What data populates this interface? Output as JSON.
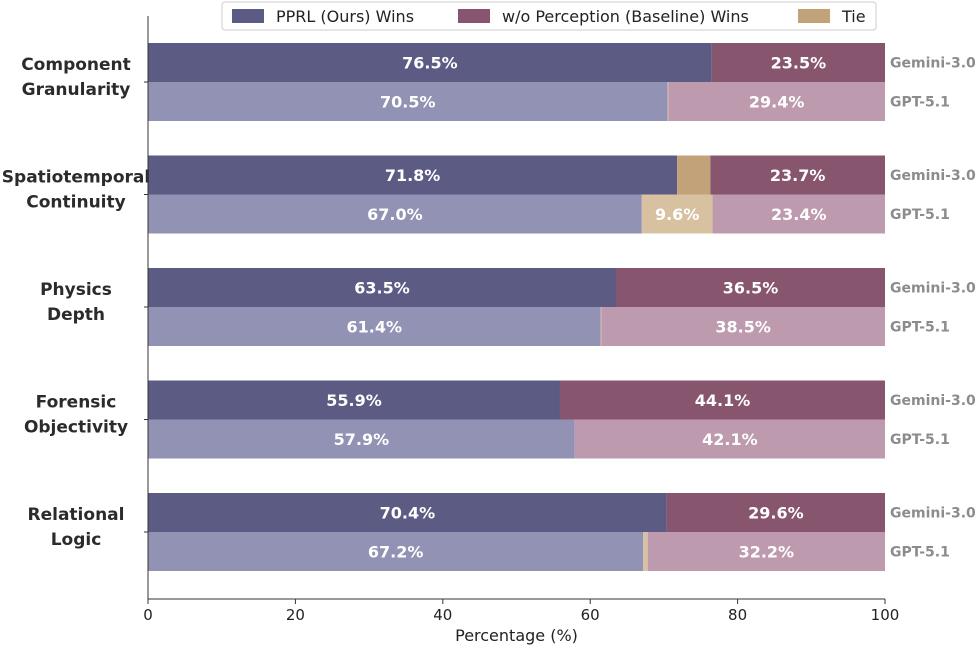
{
  "chart_data": {
    "type": "bar",
    "orientation": "horizontal",
    "stacked": true,
    "xlabel": "Percentage (%)",
    "xlim": [
      0,
      100
    ],
    "xticks": [
      0,
      20,
      40,
      60,
      80,
      100
    ],
    "legend": {
      "placement": "top",
      "entries": [
        "PPRL (Ours) Wins",
        "w/o Perception (Baseline) Wins",
        "Tie"
      ]
    },
    "models": [
      "Gemini-3.0",
      "GPT-5.1"
    ],
    "categories": [
      {
        "label_lines": [
          "Component",
          "Granularity"
        ],
        "rows": [
          {
            "model": "Gemini-3.0",
            "ours": 76.5,
            "tie": 0.0,
            "baseline": 23.5,
            "ours_label": "76.5%",
            "tie_label": "",
            "baseline_label": "23.5%"
          },
          {
            "model": "GPT-5.1",
            "ours": 70.5,
            "tie": 0.1,
            "baseline": 29.4,
            "ours_label": "70.5%",
            "tie_label": "",
            "baseline_label": "29.4%"
          }
        ]
      },
      {
        "label_lines": [
          "Spatiotemporal",
          "Continuity"
        ],
        "rows": [
          {
            "model": "Gemini-3.0",
            "ours": 71.8,
            "tie": 4.5,
            "baseline": 23.7,
            "ours_label": "71.8%",
            "tie_label": "",
            "baseline_label": "23.7%"
          },
          {
            "model": "GPT-5.1",
            "ours": 67.0,
            "tie": 9.6,
            "baseline": 23.4,
            "ours_label": "67.0%",
            "tie_label": "9.6%",
            "baseline_label": "23.4%"
          }
        ]
      },
      {
        "label_lines": [
          "Physics",
          "Depth"
        ],
        "rows": [
          {
            "model": "Gemini-3.0",
            "ours": 63.5,
            "tie": 0.0,
            "baseline": 36.5,
            "ours_label": "63.5%",
            "tie_label": "",
            "baseline_label": "36.5%"
          },
          {
            "model": "GPT-5.1",
            "ours": 61.4,
            "tie": 0.1,
            "baseline": 38.5,
            "ours_label": "61.4%",
            "tie_label": "",
            "baseline_label": "38.5%"
          }
        ]
      },
      {
        "label_lines": [
          "Forensic",
          "Objectivity"
        ],
        "rows": [
          {
            "model": "Gemini-3.0",
            "ours": 55.9,
            "tie": 0.0,
            "baseline": 44.1,
            "ours_label": "55.9%",
            "tie_label": "",
            "baseline_label": "44.1%"
          },
          {
            "model": "GPT-5.1",
            "ours": 57.9,
            "tie": 0.0,
            "baseline": 42.1,
            "ours_label": "57.9%",
            "tie_label": "",
            "baseline_label": "42.1%"
          }
        ]
      },
      {
        "label_lines": [
          "Relational",
          "Logic"
        ],
        "rows": [
          {
            "model": "Gemini-3.0",
            "ours": 70.4,
            "tie": 0.0,
            "baseline": 29.6,
            "ours_label": "70.4%",
            "tie_label": "",
            "baseline_label": "29.6%"
          },
          {
            "model": "GPT-5.1",
            "ours": 67.2,
            "tie": 0.6,
            "baseline": 32.2,
            "ours_label": "67.2%",
            "tie_label": "",
            "baseline_label": "32.2%"
          }
        ]
      }
    ],
    "colors": {
      "ours": {
        "Gemini-3.0": "#5b5b84",
        "GPT-5.1": "#9292b4"
      },
      "baseline": {
        "Gemini-3.0": "#87566e",
        "GPT-5.1": "#be9aae"
      },
      "tie": {
        "Gemini-3.0": "#c2a278",
        "GPT-5.1": "#d8c1a1"
      },
      "legend": {
        "ours": "#5b5b84",
        "baseline": "#87566e",
        "tie": "#c2a278"
      }
    }
  }
}
